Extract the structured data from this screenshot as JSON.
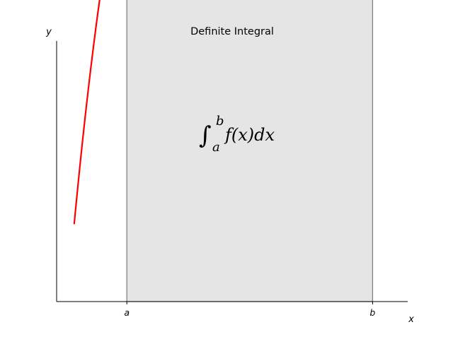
{
  "chart_data": {
    "type": "area",
    "title": "Definite Integral",
    "xlabel": "x",
    "ylabel": "y",
    "xlim": [
      0,
      10
    ],
    "ylim": [
      0,
      40
    ],
    "series": [
      {
        "function": "(x - 3) * (x - 5) * (x - 7) + 85",
        "curve_domain": [
          0.5,
          10
        ],
        "shaded_interval": [
          2,
          9
        ]
      }
    ],
    "xticks": [
      {
        "value": 2,
        "label": "a"
      },
      {
        "value": 9,
        "label": "b"
      }
    ],
    "yticks": [],
    "annotation": {
      "integral_sign": "∫",
      "lower_limit": "a",
      "upper_limit": "b",
      "integrand": "f(x)dx"
    },
    "grid": false,
    "spines": [
      "left",
      "bottom"
    ],
    "colors": {
      "curve": "#ff0000",
      "fill": "#e5e5e5",
      "fill_edge": "#808080",
      "axes": "#000000"
    }
  }
}
